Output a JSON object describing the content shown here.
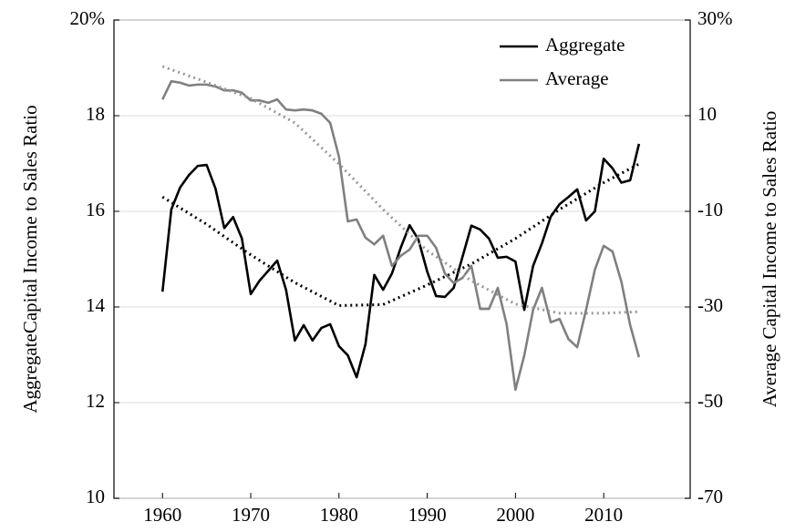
{
  "chart_data": {
    "type": "line",
    "ylabel": "AggregateCapital Income to Sales Ratio",
    "y2label": "Average Capital Income to Sales Ratio",
    "xlim": [
      1954.5,
      2019.8
    ],
    "xticks": [
      1960,
      1970,
      1980,
      1990,
      2000,
      2010
    ],
    "ylim": [
      10,
      20
    ],
    "yticks": [
      10,
      12,
      14,
      16,
      18,
      {
        "value": 20,
        "label": "20%"
      }
    ],
    "y2lim": [
      -70,
      30
    ],
    "y2ticks": [
      -70,
      -50,
      -30,
      -10,
      10,
      {
        "value": 30,
        "label": "30%"
      }
    ],
    "grid": true,
    "legend": "top-right",
    "series": [
      {
        "name": "Aggregate",
        "color": "#000000",
        "axis": "y",
        "style": "solid",
        "x": [
          1960,
          1961,
          1962,
          1963,
          1964,
          1965,
          1966,
          1967,
          1968,
          1969,
          1970,
          1971,
          1972,
          1973,
          1974,
          1975,
          1976,
          1977,
          1978,
          1979,
          1980,
          1981,
          1982,
          1983,
          1984,
          1985,
          1986,
          1987,
          1988,
          1989,
          1990,
          1991,
          1992,
          1993,
          1994,
          1995,
          1996,
          1997,
          1998,
          1999,
          2000,
          2001,
          2002,
          2003,
          2004,
          2005,
          2006,
          2007,
          2008,
          2009,
          2010,
          2011,
          2012,
          2013,
          2014
        ],
        "values": [
          14.32,
          16.04,
          16.5,
          16.76,
          16.95,
          16.97,
          16.48,
          15.65,
          15.88,
          15.43,
          14.27,
          14.55,
          14.76,
          14.97,
          14.36,
          13.3,
          13.62,
          13.3,
          13.56,
          13.64,
          13.18,
          12.99,
          12.53,
          13.22,
          14.67,
          14.36,
          14.7,
          15.24,
          15.71,
          15.41,
          14.74,
          14.23,
          14.21,
          14.4,
          15.05,
          15.7,
          15.62,
          15.43,
          15.03,
          15.05,
          14.95,
          13.94,
          14.86,
          15.33,
          15.89,
          16.15,
          16.3,
          16.46,
          15.81,
          16.0,
          17.1,
          16.9,
          16.6,
          16.65,
          17.41
        ]
      },
      {
        "name": "Average",
        "color": "#808080",
        "axis": "y2",
        "style": "solid",
        "x": [
          1960,
          1961,
          1962,
          1963,
          1964,
          1965,
          1966,
          1967,
          1968,
          1969,
          1970,
          1971,
          1972,
          1973,
          1974,
          1975,
          1976,
          1977,
          1978,
          1979,
          1980,
          1981,
          1982,
          1983,
          1984,
          1985,
          1986,
          1987,
          1988,
          1989,
          1990,
          1991,
          1992,
          1993,
          1994,
          1995,
          1996,
          1997,
          1998,
          1999,
          2000,
          2001,
          2002,
          2003,
          2004,
          2005,
          2006,
          2007,
          2008,
          2009,
          2010,
          2011,
          2012,
          2013,
          2014
        ],
        "values": [
          13.4,
          17.2,
          16.9,
          16.3,
          16.5,
          16.5,
          16.1,
          15.3,
          15.3,
          14.8,
          13.2,
          13.2,
          12.7,
          13.4,
          11.3,
          11.1,
          11.3,
          11.1,
          10.4,
          8.5,
          1.4,
          -12.1,
          -11.7,
          -15.5,
          -16.9,
          -15.1,
          -21.4,
          -19.3,
          -18.0,
          -15.1,
          -15.1,
          -17.6,
          -23,
          -25,
          -23.9,
          -21.4,
          -30.4,
          -30.4,
          -26,
          -33.6,
          -47.3,
          -40.1,
          -30.6,
          -26,
          -33.2,
          -32.5,
          -36.7,
          -38.4,
          -30.6,
          -22.2,
          -17.2,
          -18.4,
          -24.7,
          -33.8,
          -40.5
        ]
      },
      {
        "color": "#000000",
        "axis": "y",
        "style": "dotted",
        "x": [
          1960,
          1965,
          1970,
          1975,
          1980,
          1985,
          1990,
          1995,
          2000,
          2005,
          2010,
          2014
        ],
        "values": [
          16.3,
          15.73,
          15.09,
          14.51,
          14.03,
          14.05,
          14.46,
          14.9,
          15.43,
          16.04,
          16.6,
          16.99
        ]
      },
      {
        "color": "#999999",
        "axis": "y2",
        "style": "dotted",
        "x": [
          1960,
          1965,
          1970,
          1975,
          1980,
          1985,
          1990,
          1995,
          2000,
          2005,
          2010,
          2014
        ],
        "values": [
          20.3,
          17.0,
          13.6,
          8.5,
          -0.1,
          -9.6,
          -18.2,
          -24.5,
          -29.4,
          -31.3,
          -31.3,
          -31.0
        ]
      }
    ]
  }
}
